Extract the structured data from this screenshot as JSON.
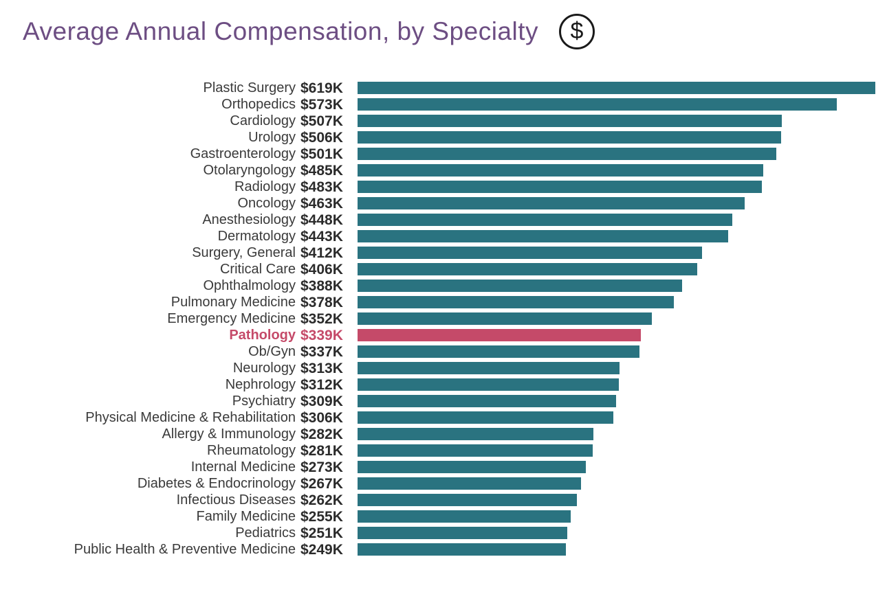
{
  "title": "Average Annual Compensation, by Specialty",
  "header_icon": "dollar-circle-icon",
  "header_icon_glyph": "$",
  "colors": {
    "title": "#6D4E83",
    "bar": "#2A7380",
    "highlight": "#C54A69",
    "label": "#3A3A3A",
    "value": "#2B2B2B",
    "icon": "#1A1A1A",
    "background": "#FFFFFF"
  },
  "chart_data": {
    "type": "bar",
    "orientation": "horizontal",
    "title": "Average Annual Compensation, by Specialty",
    "xlabel": "",
    "ylabel": "",
    "unit": "USD thousands per year",
    "xlim": [
      0,
      619
    ],
    "grid": false,
    "legend": false,
    "categories": [
      "Plastic Surgery",
      "Orthopedics",
      "Cardiology",
      "Urology",
      "Gastroenterology",
      "Otolaryngology",
      "Radiology",
      "Oncology",
      "Anesthesiology",
      "Dermatology",
      "Surgery, General",
      "Critical Care",
      "Ophthalmology",
      "Pulmonary Medicine",
      "Emergency Medicine",
      "Pathology",
      "Ob/Gyn",
      "Neurology",
      "Nephrology",
      "Psychiatry",
      "Physical Medicine & Rehabilitation",
      "Allergy & Immunology",
      "Rheumatology",
      "Internal Medicine",
      "Diabetes & Endocrinology",
      "Infectious Diseases",
      "Family Medicine",
      "Pediatrics",
      "Public Health & Preventive Medicine"
    ],
    "values": [
      619,
      573,
      507,
      506,
      501,
      485,
      483,
      463,
      448,
      443,
      412,
      406,
      388,
      378,
      352,
      339,
      337,
      313,
      312,
      309,
      306,
      282,
      281,
      273,
      267,
      262,
      255,
      251,
      249
    ],
    "value_labels": [
      "$619K",
      "$573K",
      "$507K",
      "$506K",
      "$501K",
      "$485K",
      "$483K",
      "$463K",
      "$448K",
      "$443K",
      "$412K",
      "$406K",
      "$388K",
      "$378K",
      "$352K",
      "$339K",
      "$337K",
      "$313K",
      "$312K",
      "$309K",
      "$306K",
      "$282K",
      "$281K",
      "$273K",
      "$267K",
      "$262K",
      "$255K",
      "$251K",
      "$249K"
    ],
    "highlight_index": 15,
    "highlight_category": "Pathology"
  }
}
